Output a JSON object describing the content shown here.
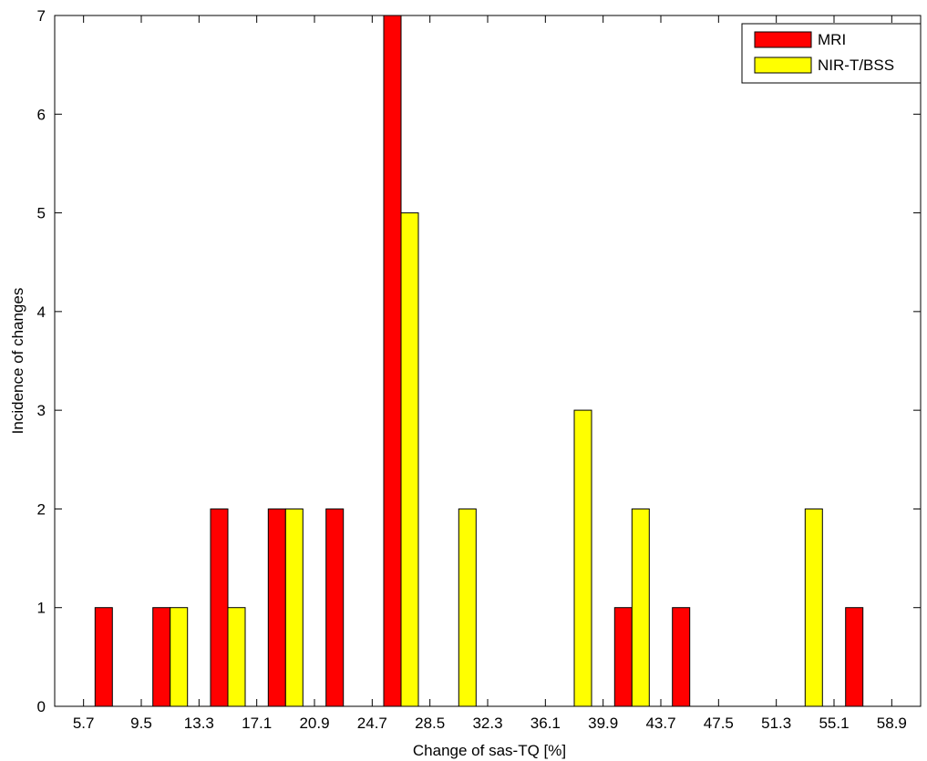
{
  "chart_data": {
    "type": "bar",
    "xlabel": "Change of sas-TQ [%]",
    "ylabel": "Incidence of changes",
    "ylim": [
      0,
      7
    ],
    "yticks": [
      0,
      1,
      2,
      3,
      4,
      5,
      6,
      7
    ],
    "xlim": [
      3.8,
      60.8
    ],
    "xticks": [
      "5.7",
      "9.5",
      "13.3",
      "17.1",
      "20.9",
      "24.7",
      "28.5",
      "32.3",
      "36.1",
      "39.9",
      "43.7",
      "47.5",
      "51.3",
      "55.1",
      "58.9"
    ],
    "x": [
      7.6,
      11.4,
      15.2,
      19.0,
      22.8,
      26.6,
      30.4,
      34.2,
      38.0,
      41.8,
      45.6,
      49.4,
      53.2,
      57.0
    ],
    "series": [
      {
        "name": "MRI",
        "color": "#ff0000",
        "values": [
          1,
          1,
          2,
          2,
          2,
          7,
          0,
          0,
          0,
          1,
          1,
          0,
          0,
          1
        ]
      },
      {
        "name": "NIR-T/BSS",
        "color": "#ffff00",
        "values": [
          0,
          1,
          1,
          2,
          0,
          5,
          2,
          0,
          3,
          2,
          0,
          0,
          2,
          0
        ]
      }
    ],
    "legend_position": "top-right",
    "grid": false
  }
}
